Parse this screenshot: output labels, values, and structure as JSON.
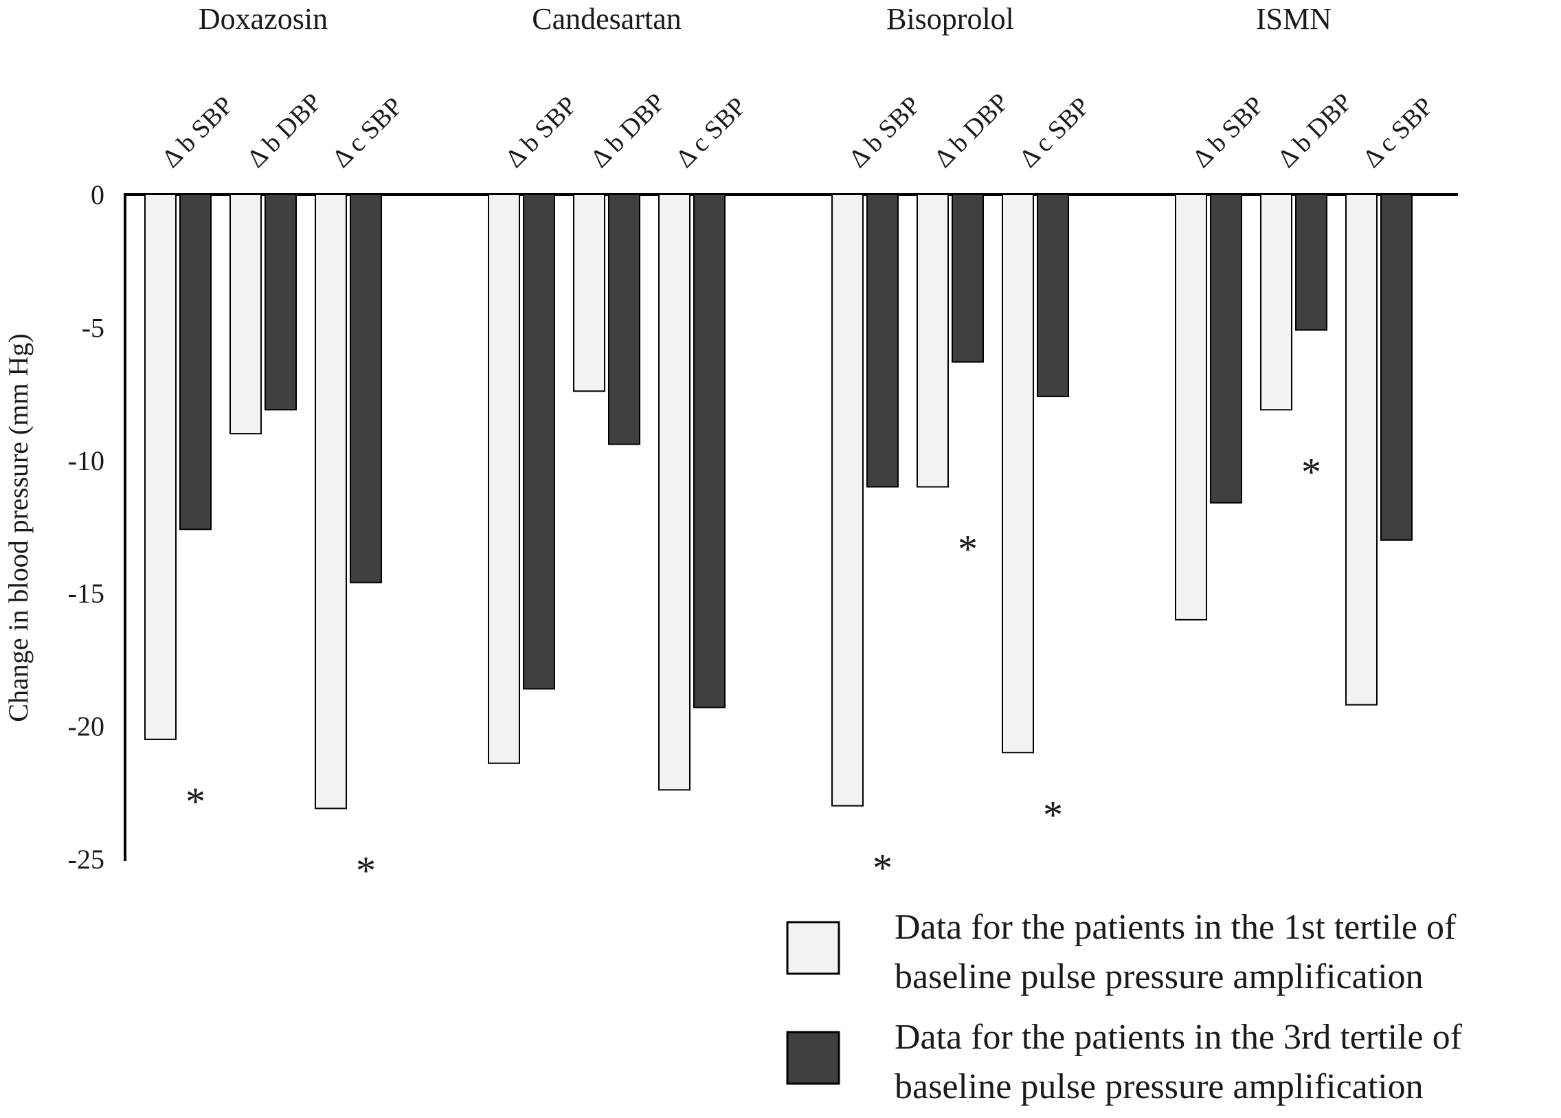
{
  "chart_data": {
    "type": "bar",
    "ylabel": "Change in blood pressure (mm Hg)",
    "ylim": [
      -25,
      0
    ],
    "yticks": [
      0,
      -5,
      -10,
      -15,
      -20,
      -25
    ],
    "grid": false,
    "legend_position": "bottom-right",
    "groups": [
      {
        "name": "Doxazosin",
        "measures": [
          {
            "label": "Δ b SBP",
            "values": [
              -20.5,
              -12.6
            ],
            "significant": true
          },
          {
            "label": "Δ b DBP",
            "values": [
              -9.0,
              -8.1
            ],
            "significant": false
          },
          {
            "label": "Δ c SBP",
            "values": [
              -23.1,
              -14.6
            ],
            "significant": true
          }
        ]
      },
      {
        "name": "Candesartan",
        "measures": [
          {
            "label": "Δ b SBP",
            "values": [
              -21.4,
              -18.6
            ],
            "significant": false
          },
          {
            "label": "Δ b DBP",
            "values": [
              -7.4,
              -9.4
            ],
            "significant": false
          },
          {
            "label": "Δ c SBP",
            "values": [
              -22.4,
              -19.3
            ],
            "significant": false
          }
        ]
      },
      {
        "name": "Bisoprolol",
        "measures": [
          {
            "label": "Δ b SBP",
            "values": [
              -23.0,
              -11.0
            ],
            "significant": true
          },
          {
            "label": "Δ b DBP",
            "values": [
              -11.0,
              -6.3
            ],
            "significant": true
          },
          {
            "label": "Δ c SBP",
            "values": [
              -21.0,
              -7.6
            ],
            "significant": true
          }
        ]
      },
      {
        "name": "ISMN",
        "measures": [
          {
            "label": "Δ b SBP",
            "values": [
              -16.0,
              -11.6
            ],
            "significant": false
          },
          {
            "label": "Δ b DBP",
            "values": [
              -8.1,
              -5.1
            ],
            "significant": true
          },
          {
            "label": "Δ c SBP",
            "values": [
              -19.2,
              -13.0
            ],
            "significant": false
          }
        ]
      }
    ],
    "series": [
      {
        "name": "Data for the patients in the 1st tertile of baseline pulse pressure amplification",
        "color": "#f2f2f2"
      },
      {
        "name": "Data for the patients in the 3rd tertile of baseline pulse pressure amplification",
        "color": "#404040"
      }
    ],
    "significance_marker": "*"
  },
  "legend": {
    "items": [
      {
        "line1": "Data for the patients in the 1st tertile of",
        "line2": "baseline pulse pressure amplification"
      },
      {
        "line1": "Data for the patients in the 3rd tertile of",
        "line2": "baseline pulse pressure amplification"
      }
    ]
  }
}
